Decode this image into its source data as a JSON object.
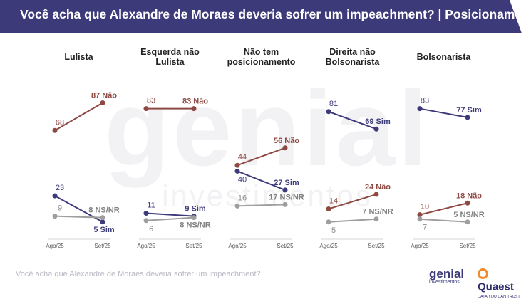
{
  "header": {
    "title": "Você acha que Alexandre de Moraes deveria sofrer um impeachment? | Posicionamento"
  },
  "watermark": {
    "line1": "genial",
    "line2": "investimentos"
  },
  "footer": {
    "question": "Você acha que Alexandre de Moraes deveria sofrer um impeachment?"
  },
  "logos": {
    "genial": {
      "name": "genial",
      "sub": "investimentos"
    },
    "quaest": {
      "name": "Quaest",
      "tagline": "DATA YOU CAN TRUST"
    }
  },
  "colors": {
    "header_bg": "#3d3a7a",
    "nao": "#8e4a42",
    "sim": "#3d3a7a",
    "nsnr": "#9e9e9e",
    "axis": "#d6d6d6"
  },
  "chart_data": {
    "type": "line",
    "x": [
      "Ago/25",
      "Set/25"
    ],
    "ylim": [
      0,
      100
    ],
    "panels": [
      {
        "title": [
          "Lulista"
        ],
        "series": [
          {
            "name": "Não",
            "color": "#8e4a42",
            "values": [
              68,
              87
            ],
            "labels": [
              "68",
              "87 Não"
            ]
          },
          {
            "name": "Sim",
            "color": "#3d3a7a",
            "values": [
              23,
              5
            ],
            "labels": [
              "23",
              "5 Sim"
            ]
          },
          {
            "name": "NS/NR",
            "color": "#9e9e9e",
            "values": [
              9,
              8
            ],
            "labels": [
              "9",
              "8 NS/NR"
            ]
          }
        ]
      },
      {
        "title": [
          "Esquerda não",
          "Lulista"
        ],
        "series": [
          {
            "name": "Não",
            "color": "#8e4a42",
            "values": [
              83,
              83
            ],
            "labels": [
              "83",
              "83 Não"
            ]
          },
          {
            "name": "Sim",
            "color": "#3d3a7a",
            "values": [
              11,
              9
            ],
            "labels": [
              "11",
              "9 Sim"
            ]
          },
          {
            "name": "NS/NR",
            "color": "#9e9e9e",
            "values": [
              6,
              8
            ],
            "labels": [
              "6",
              "8 NS/NR"
            ]
          }
        ]
      },
      {
        "title": [
          "Não tem",
          "posicionamento"
        ],
        "series": [
          {
            "name": "Não",
            "color": "#8e4a42",
            "values": [
              44,
              56
            ],
            "labels": [
              "44",
              "56 Não"
            ]
          },
          {
            "name": "Sim",
            "color": "#3d3a7a",
            "values": [
              40,
              27
            ],
            "labels": [
              "40",
              "27 Sim"
            ]
          },
          {
            "name": "NS/NR",
            "color": "#9e9e9e",
            "values": [
              16,
              17
            ],
            "labels": [
              "16",
              "17 NS/NR"
            ]
          }
        ]
      },
      {
        "title": [
          "Direita não",
          "Bolsonarista"
        ],
        "series": [
          {
            "name": "Sim",
            "color": "#3d3a7a",
            "values": [
              81,
              69
            ],
            "labels": [
              "81",
              "69 Sim"
            ]
          },
          {
            "name": "Não",
            "color": "#8e4a42",
            "values": [
              14,
              24
            ],
            "labels": [
              "14",
              "24 Não"
            ]
          },
          {
            "name": "NS/NR",
            "color": "#9e9e9e",
            "values": [
              5,
              7
            ],
            "labels": [
              "5",
              "7 NS/NR"
            ]
          }
        ]
      },
      {
        "title": [
          "Bolsonarista"
        ],
        "series": [
          {
            "name": "Sim",
            "color": "#3d3a7a",
            "values": [
              83,
              77
            ],
            "labels": [
              "83",
              "77 Sim"
            ]
          },
          {
            "name": "Não",
            "color": "#8e4a42",
            "values": [
              10,
              18
            ],
            "labels": [
              "10",
              "18 Não"
            ]
          },
          {
            "name": "NS/NR",
            "color": "#9e9e9e",
            "values": [
              7,
              5
            ],
            "labels": [
              "7",
              "5 NS/NR"
            ]
          }
        ]
      }
    ]
  }
}
